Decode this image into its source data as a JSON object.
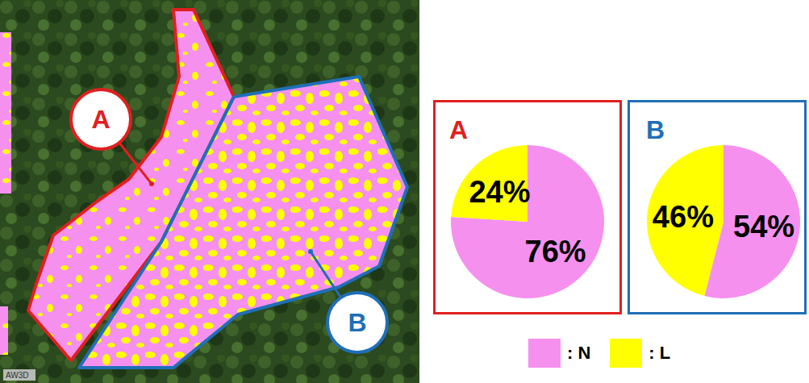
{
  "chart_data": [
    {
      "type": "pie",
      "title": "A",
      "categories": [
        "N",
        "L"
      ],
      "values": [
        76,
        24
      ],
      "value_labels": [
        "76%",
        "24%"
      ],
      "colors": [
        "#f590ef",
        "#ffff00"
      ],
      "data_labels": true
    },
    {
      "type": "pie",
      "title": "B",
      "categories": [
        "N",
        "L"
      ],
      "values": [
        54,
        46
      ],
      "value_labels": [
        "54%",
        "46%"
      ],
      "colors": [
        "#f590ef",
        "#ffff00"
      ],
      "data_labels": true
    }
  ],
  "legend_labels": [
    ": N",
    ": L"
  ],
  "map": {
    "labels": [
      "A",
      "B"
    ],
    "credit": "AW3D"
  }
}
